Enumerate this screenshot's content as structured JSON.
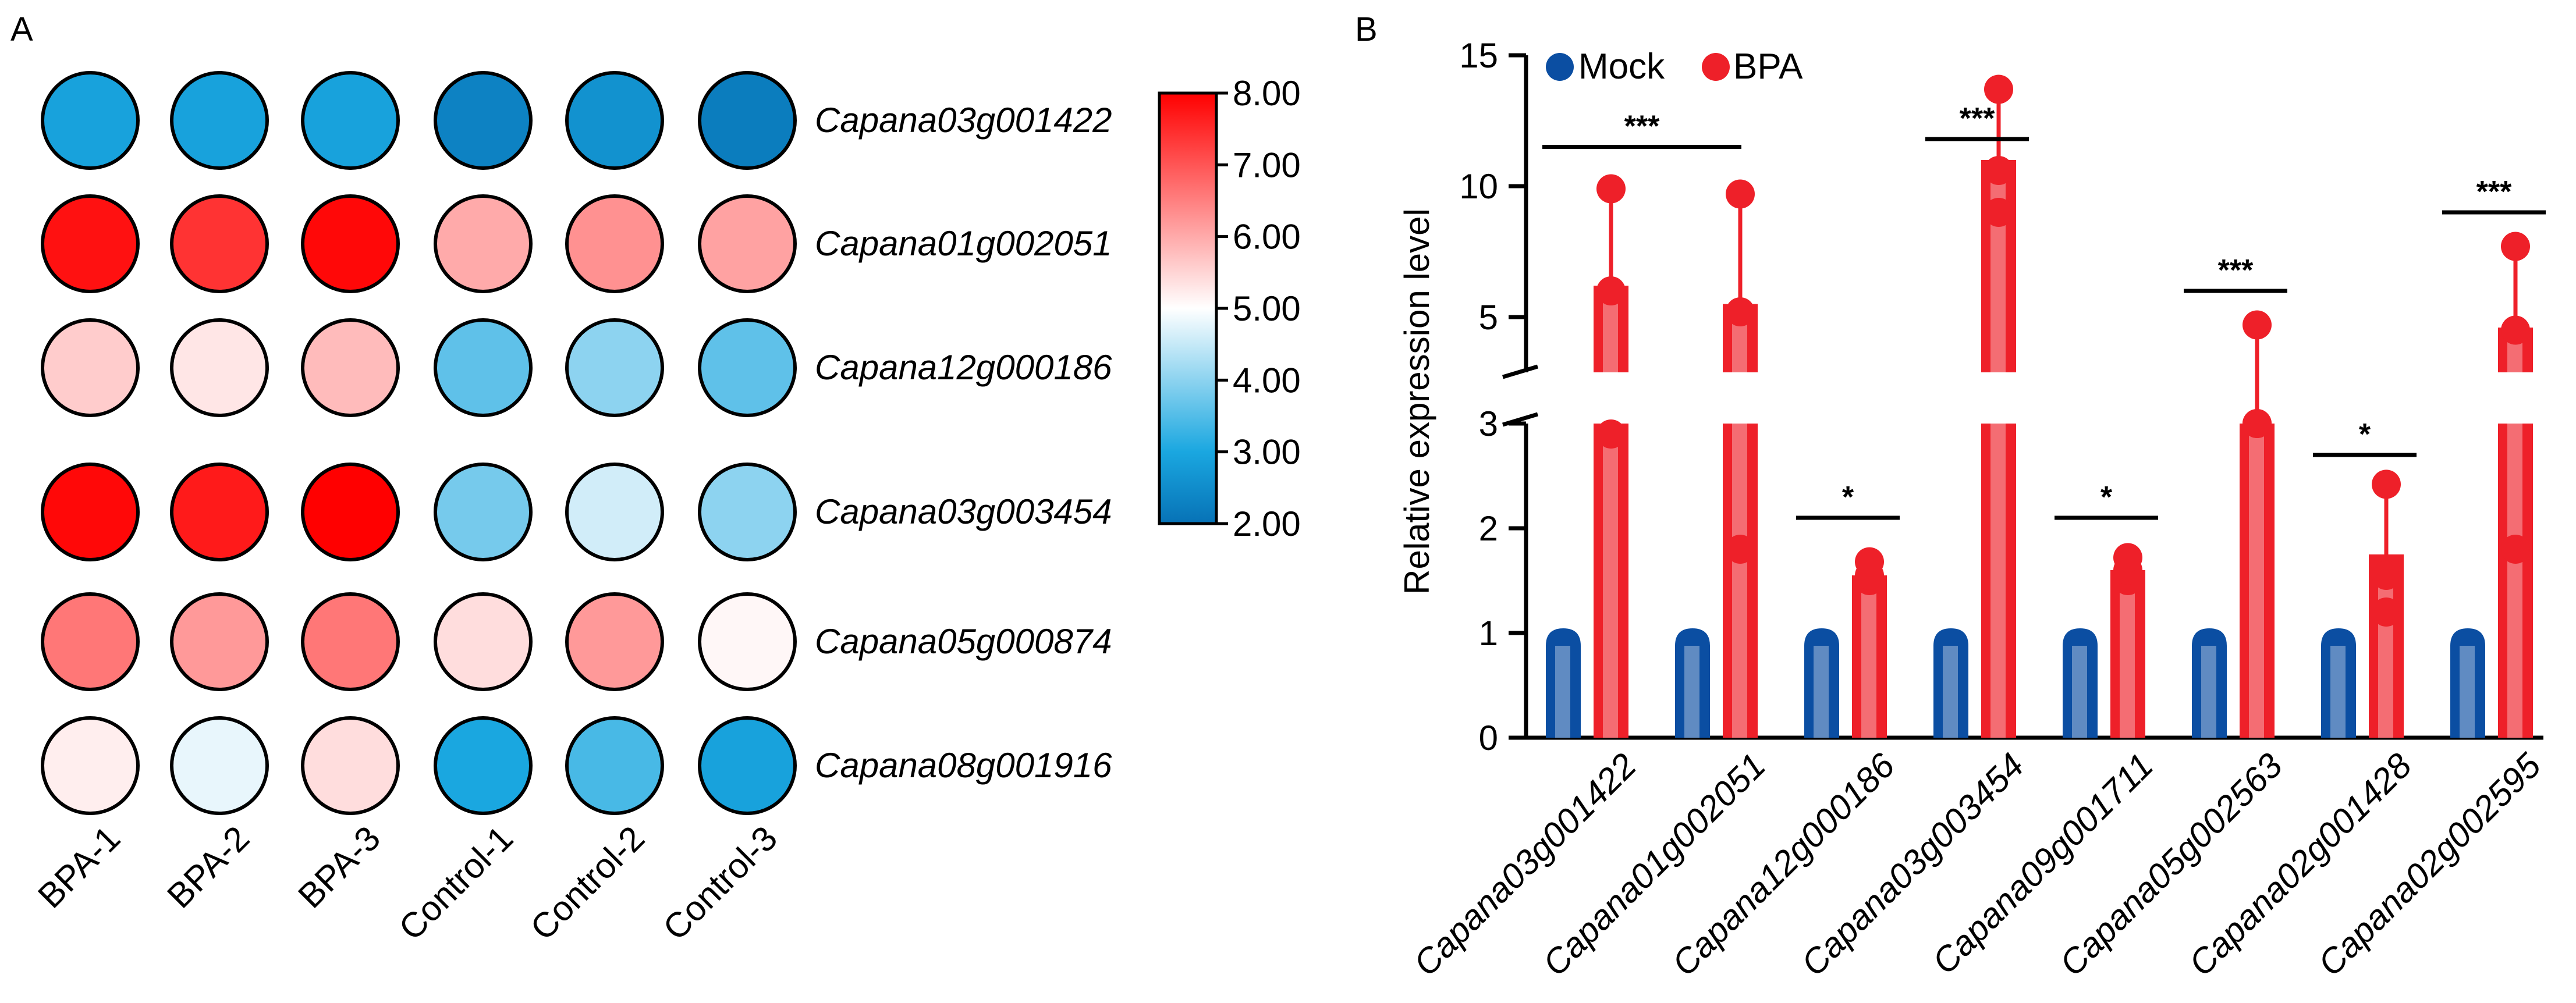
{
  "chart_data": [
    {
      "type": "heatmap",
      "panel_label": "A",
      "columns": [
        "BPA-1",
        "BPA-2",
        "BPA-3",
        "Control-1",
        "Control-2",
        "Control-3"
      ],
      "rows": [
        "Capana03g001422",
        "Capana01g002051",
        "Capana12g000186",
        "Capana03g003454",
        "Capana05g000874",
        "Capana08g001916"
      ],
      "values": [
        [
          2.9,
          2.9,
          2.9,
          2.3,
          2.6,
          2.2
        ],
        [
          7.8,
          7.4,
          7.9,
          6.0,
          6.3,
          6.1
        ],
        [
          5.6,
          5.3,
          5.8,
          3.6,
          4.0,
          3.6
        ],
        [
          7.9,
          7.7,
          8.0,
          3.8,
          4.6,
          4.0
        ],
        [
          6.6,
          6.2,
          6.6,
          5.4,
          6.2,
          5.1
        ],
        [
          5.2,
          4.8,
          5.4,
          3.0,
          3.4,
          2.9
        ]
      ],
      "colorbar": {
        "min": 2.0,
        "max": 8.0,
        "ticks": [
          "8.00",
          "7.00",
          "6.00",
          "5.00",
          "4.00",
          "3.00",
          "2.00"
        ],
        "colors": [
          "#0772b6",
          "#1aa7e0",
          "#ffffff",
          "#ff0000"
        ]
      }
    },
    {
      "type": "bar",
      "panel_label": "B",
      "categories": [
        "Capana03g001422",
        "Capana01g002051",
        "Capana12g000186",
        "Capana03g003454",
        "Capana09g001711",
        "Capana05g002563",
        "Capana02g001428",
        "Capana02g002595"
      ],
      "series": [
        {
          "name": "Mock",
          "color": "#0b4ea2",
          "values": [
            1,
            1,
            1,
            1,
            1,
            1,
            1,
            1
          ]
        },
        {
          "name": "BPA",
          "color": "#ee2029",
          "values": [
            6.2,
            5.5,
            1.55,
            11.0,
            1.6,
            4.4,
            1.75,
            4.6
          ],
          "error_top": [
            9.9,
            9.7,
            1.68,
            13.5,
            1.72,
            4.7,
            2.42,
            7.7
          ],
          "dots": [
            [
              2.9,
              6.0,
              9.9
            ],
            [
              1.8,
              5.2,
              9.7
            ],
            [
              1.5,
              1.55,
              1.68
            ],
            [
              9.0,
              10.6,
              13.7
            ],
            [
              1.5,
              1.6,
              1.72
            ],
            [
              4.2,
              4.4,
              4.7
            ],
            [
              1.2,
              1.55,
              2.42
            ],
            [
              1.8,
              4.5,
              7.7
            ]
          ]
        }
      ],
      "significance": [
        "***",
        "***",
        "*",
        "***",
        "*",
        "***",
        "*",
        "***"
      ],
      "significance_y": [
        11.5,
        11.5,
        2.1,
        11.8,
        2.1,
        6.0,
        2.7,
        9.0
      ],
      "ylabel": "Relative expression level",
      "xlabel": "",
      "ylim": [
        0,
        15
      ],
      "axis_break": [
        3,
        4.5
      ],
      "y_ticks_lower": [
        "0",
        "1",
        "2",
        "3"
      ],
      "y_ticks_upper": [
        "5",
        "10",
        "15"
      ]
    }
  ]
}
